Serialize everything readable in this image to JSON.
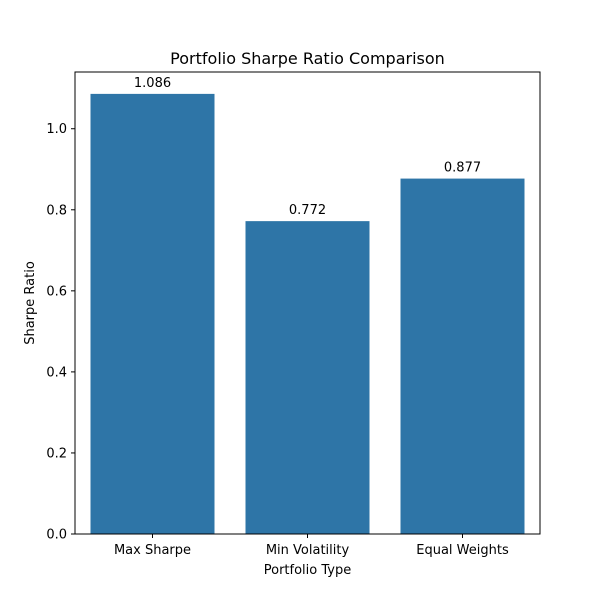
{
  "chart_data": {
    "type": "bar",
    "title": "Portfolio Sharpe Ratio Comparison",
    "xlabel": "Portfolio Type",
    "ylabel": "Sharpe Ratio",
    "categories": [
      "Max Sharpe",
      "Min Volatility",
      "Equal Weights"
    ],
    "values": [
      1.086,
      0.772,
      0.877
    ],
    "data_labels": [
      "1.086",
      "0.772",
      "0.877"
    ],
    "ylim": [
      0,
      1.14
    ],
    "yticks": [
      0.0,
      0.2,
      0.4,
      0.6,
      0.8,
      1.0
    ],
    "ytick_labels": [
      "0.0",
      "0.2",
      "0.4",
      "0.6",
      "0.8",
      "1.0"
    ],
    "grid": false,
    "bar_color": "#2e75a7"
  }
}
